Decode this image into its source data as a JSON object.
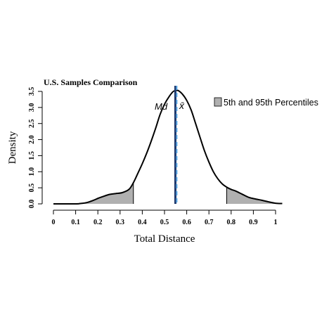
{
  "chart_data": {
    "type": "area",
    "title": "U.S. Samples Comparison",
    "xlabel": "Total Distance",
    "ylabel": "Density",
    "xlim": [
      0,
      1.05
    ],
    "ylim": [
      0,
      3.6
    ],
    "x_ticks": [
      0,
      0.1,
      0.2,
      0.3,
      0.4,
      0.5,
      0.6,
      0.7,
      0.8,
      0.9,
      1
    ],
    "x_tick_labels": [
      "0",
      "0.1",
      "0.2",
      "0.3",
      "0.4",
      "0.5",
      "0.6",
      "0.7",
      "0.8",
      "0.9",
      "1"
    ],
    "y_ticks": [
      0,
      0.5,
      1,
      1.5,
      2,
      2.5,
      3,
      3.5
    ],
    "y_tick_labels": [
      "0.0",
      "0.5",
      "1.0",
      "1.5",
      "2.0",
      "2.5",
      "3.0",
      "3.5"
    ],
    "grid": false,
    "legend": {
      "position": "top-right",
      "entries": [
        {
          "label": "5th and 95th Percentiles",
          "color": "#b0b0b0"
        }
      ]
    },
    "series": [
      {
        "x": [
          0,
          0.1,
          0.12,
          0.15,
          0.18,
          0.2,
          0.22,
          0.25,
          0.28,
          0.31,
          0.34,
          0.36,
          0.38,
          0.4,
          0.42,
          0.44,
          0.46,
          0.48,
          0.5,
          0.52,
          0.54,
          0.56,
          0.58,
          0.6,
          0.62,
          0.64,
          0.66,
          0.68,
          0.7,
          0.72,
          0.74,
          0.76,
          0.78,
          0.8,
          0.82,
          0.85,
          0.88,
          0.91,
          0.94,
          0.97,
          1.0,
          1.03
        ],
        "values": [
          0,
          0,
          0.01,
          0.04,
          0.11,
          0.17,
          0.22,
          0.29,
          0.32,
          0.35,
          0.45,
          0.66,
          0.95,
          1.25,
          1.58,
          1.95,
          2.35,
          2.78,
          3.1,
          3.33,
          3.5,
          3.53,
          3.42,
          3.22,
          2.92,
          2.5,
          2.07,
          1.65,
          1.3,
          1.0,
          0.78,
          0.62,
          0.52,
          0.45,
          0.4,
          0.3,
          0.2,
          0.15,
          0.11,
          0.06,
          0.02,
          0.01
        ]
      }
    ],
    "shaded_regions": [
      {
        "from": 0.12,
        "to": 0.36,
        "color": "#b0b0b0"
      },
      {
        "from": 0.78,
        "to": 1.03,
        "color": "#b0b0b0"
      }
    ],
    "reference_lines": [
      {
        "label": "Md",
        "x": 0.549,
        "style": "solid",
        "color": "#1f3a6e"
      },
      {
        "label": "x̄",
        "x": 0.555,
        "style": "dashed",
        "color": "#5aa9e6"
      }
    ]
  }
}
